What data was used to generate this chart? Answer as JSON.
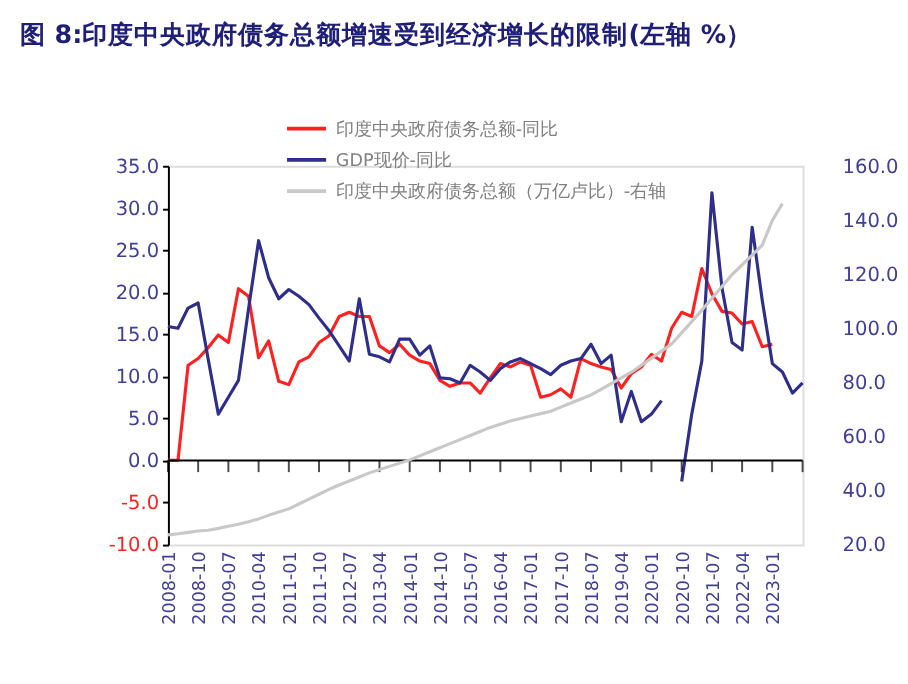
{
  "chart_data": {
    "type": "line",
    "title": "图 8:印度中央政府债务总额增速受到经济增长的限制(左轴 %）",
    "categories": [
      "2008-01",
      null,
      null,
      "2008-10",
      null,
      null,
      "2009-07",
      null,
      null,
      "2010-04",
      null,
      null,
      "2011-01",
      null,
      null,
      "2011-10",
      null,
      null,
      "2012-07",
      null,
      null,
      "2013-04",
      null,
      null,
      "2014-01",
      null,
      null,
      "2014-10",
      null,
      null,
      "2015-07",
      null,
      null,
      "2016-04",
      null,
      null,
      "2017-01",
      null,
      null,
      "2017-10",
      null,
      null,
      "2018-07",
      null,
      null,
      "2019-04",
      null,
      null,
      "2020-01",
      null,
      null,
      "2020-10",
      null,
      null,
      "2021-07",
      null,
      null,
      "2022-04",
      null,
      null,
      "2023-01",
      null,
      null,
      null
    ],
    "series": [
      {
        "name": "印度中央政府债务总额-同比",
        "color": "#ff2020",
        "values": [
          0,
          0,
          11.3,
          12.1,
          13.4,
          14.9,
          14.0,
          20.4,
          19.5,
          12.2,
          14.2,
          9.4,
          9.0,
          11.7,
          12.3,
          14.0,
          14.8,
          17.1,
          17.6,
          17.1,
          17.1,
          13.6,
          12.8,
          13.8,
          12.5,
          11.8,
          11.5,
          9.5,
          8.8,
          9.2,
          9.2,
          8.0,
          9.8,
          11.5,
          11.1,
          11.7,
          11.3,
          7.5,
          7.8,
          8.5,
          7.5,
          12.1,
          11.5,
          11.1,
          10.8,
          8.6,
          10.3,
          11.1,
          12.6,
          11.8,
          15.7,
          17.6,
          17.1,
          22.8,
          19.8,
          17.7,
          17.5,
          16.2,
          16.5,
          13.5,
          13.8,
          null,
          null,
          null
        ]
      },
      {
        "name": "GDP现价-同比",
        "color": "#2e2e8c",
        "values": [
          15.9,
          15.7,
          18.1,
          18.7,
          12.0,
          5.5,
          7.5,
          9.5,
          18.0,
          26.1,
          21.7,
          19.2,
          20.3,
          19.5,
          18.5,
          16.9,
          15.4,
          13.6,
          11.8,
          19.2,
          12.6,
          12.3,
          11.7,
          14.4,
          14.4,
          12.5,
          13.6,
          9.8,
          9.7,
          9.2,
          11.3,
          10.5,
          9.5,
          10.9,
          11.7,
          12.1,
          11.5,
          10.9,
          10.2,
          11.3,
          11.8,
          12.1,
          13.8,
          11.5,
          12.5,
          4.6,
          8.2,
          4.6,
          5.5,
          7.1,
          null,
          -2.5,
          5.5,
          11.8,
          31.8,
          20.5,
          14.0,
          13.1,
          27.7,
          19.0,
          11.5,
          10.5,
          8.0,
          9.2
        ]
      },
      {
        "name": "印度中央政府债务总额（万亿卢比）-右轴",
        "color": "#c8c8c8",
        "axis": "y2",
        "values": [
          23.6,
          24,
          24.5,
          25,
          25.3,
          26,
          26.8,
          27.5,
          28.4,
          29.5,
          30.8,
          32,
          33.2,
          35,
          36.8,
          38.6,
          40.4,
          42,
          43.5,
          45,
          46.5,
          47.7,
          48.9,
          50.1,
          51.3,
          52.8,
          54.3,
          55.8,
          57.3,
          58.8,
          60.3,
          61.8,
          63.3,
          64.5,
          65.7,
          66.6,
          67.5,
          68.4,
          69.3,
          70.8,
          72.3,
          73.8,
          75.3,
          77.4,
          79.5,
          81.6,
          83.7,
          86.3,
          88.9,
          91.5,
          94.1,
          98.3,
          102.4,
          106.6,
          111,
          115.4,
          119.8,
          123.4,
          127,
          130.7,
          139.8,
          146,
          null,
          null
        ]
      }
    ],
    "ylim": [
      -10,
      35
    ],
    "yticks": [
      {
        "value": -10,
        "label": "-10.0"
      },
      {
        "value": -5,
        "label": "-5.0"
      },
      {
        "value": 0,
        "label": "0.0"
      },
      {
        "value": 5,
        "label": "5.0"
      },
      {
        "value": 10,
        "label": "10.0"
      },
      {
        "value": 15,
        "label": "15.0"
      },
      {
        "value": 20,
        "label": "20.0"
      },
      {
        "value": 25,
        "label": "25.0"
      },
      {
        "value": 30,
        "label": "30.0"
      },
      {
        "value": 35,
        "label": "35.0"
      }
    ],
    "y2lim": [
      20,
      160
    ],
    "y2ticks": [
      {
        "value": 20,
        "label": "20.0"
      },
      {
        "value": 40,
        "label": "40.0"
      },
      {
        "value": 60,
        "label": "60.0"
      },
      {
        "value": 80,
        "label": "80.0"
      },
      {
        "value": 100,
        "label": "100.0"
      },
      {
        "value": 120,
        "label": "120.0"
      },
      {
        "value": 140,
        "label": "140.0"
      },
      {
        "value": 160,
        "label": "160.0"
      }
    ],
    "ref_lines": [
      {
        "axis": "y",
        "value": 0,
        "color": "#000000"
      }
    ],
    "legend": "top left",
    "grid": false,
    "marker": "none",
    "line_style": "solid"
  }
}
